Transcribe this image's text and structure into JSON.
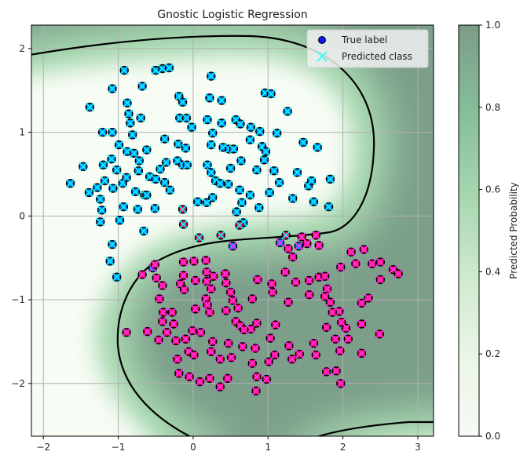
{
  "chart_data": {
    "type": "scatter",
    "title": "Gnostic Logistic Regression",
    "xlabel": "",
    "ylabel": "",
    "xlim": [
      -2.16,
      3.21
    ],
    "ylim": [
      -2.63,
      2.28
    ],
    "xticks": [
      -2,
      -1,
      0,
      1,
      2,
      3
    ],
    "yticks": [
      2,
      1,
      0,
      -1,
      -2
    ],
    "grid": true,
    "legend": {
      "placement": "top-right",
      "entries": [
        {
          "label": "True label",
          "marker": "circle",
          "color": "#1010ff"
        },
        {
          "label": "Predicted class",
          "marker": "x",
          "color": "#40ffff"
        }
      ]
    },
    "background": "predicted probability field, decision boundary at p = 0.5 drawn as black contour",
    "colorbar": {
      "label": "Predicted Probability",
      "range": [
        0.0,
        1.0
      ],
      "ticks": [
        "0.0",
        "0.2",
        "0.4",
        "0.6",
        "0.8",
        "1.0"
      ],
      "colors": [
        "#f6faf4",
        "#eaf5e7",
        "#cde9cb",
        "#a3d5ad",
        "#84bc98",
        "#7c9c88"
      ]
    },
    "colors": {
      "true_0": "#0a7cff",
      "true_1": "#ff0a5a",
      "pred_0": "#00ffff",
      "pred_1": "#ff33ff"
    },
    "series": [
      {
        "true_label": 0,
        "predicted": 0,
        "points": [
          [
            -1.64,
            0.39
          ],
          [
            -1.47,
            0.59
          ],
          [
            -1.39,
            0.28
          ],
          [
            -1.38,
            1.3
          ],
          [
            -1.08,
            1.52
          ],
          [
            -0.92,
            1.74
          ],
          [
            -0.88,
            1.35
          ],
          [
            -0.68,
            1.55
          ],
          [
            -0.5,
            1.74
          ],
          [
            -0.41,
            1.76
          ],
          [
            -0.32,
            1.77
          ],
          [
            -0.19,
            1.43
          ],
          [
            -0.14,
            1.36
          ],
          [
            -0.18,
            1.17
          ],
          [
            -0.09,
            1.17
          ],
          [
            -0.02,
            1.06
          ],
          [
            -0.2,
            0.86
          ],
          [
            -0.38,
            0.92
          ],
          [
            -0.1,
            0.81
          ],
          [
            -0.86,
            1.22
          ],
          [
            -0.7,
            1.17
          ],
          [
            -0.81,
            0.97
          ],
          [
            -1.08,
            1.0
          ],
          [
            -1.21,
            1.0
          ],
          [
            -1.09,
            0.68
          ],
          [
            -1.02,
            0.55
          ],
          [
            -1.2,
            0.61
          ],
          [
            -1.18,
            0.42
          ],
          [
            -1.28,
            0.34
          ],
          [
            -1.24,
            0.2
          ],
          [
            -1.22,
            0.07
          ],
          [
            -0.99,
            0.85
          ],
          [
            -0.88,
            0.77
          ],
          [
            -0.79,
            0.75
          ],
          [
            -0.72,
            0.66
          ],
          [
            -0.73,
            0.54
          ],
          [
            -0.58,
            0.47
          ],
          [
            -0.44,
            0.56
          ],
          [
            -0.36,
            0.64
          ],
          [
            -0.21,
            0.66
          ],
          [
            -0.14,
            0.61
          ],
          [
            -0.08,
            0.61
          ],
          [
            0.24,
            1.67
          ],
          [
            0.22,
            1.41
          ],
          [
            0.19,
            1.15
          ],
          [
            0.38,
            1.38
          ],
          [
            0.38,
            1.11
          ],
          [
            0.4,
            0.82
          ],
          [
            0.24,
            0.85
          ],
          [
            0.26,
            0.99
          ],
          [
            0.57,
            1.15
          ],
          [
            0.63,
            1.1
          ],
          [
            0.48,
            0.8
          ],
          [
            0.54,
            0.8
          ],
          [
            0.89,
            1.01
          ],
          [
            0.77,
            1.06
          ],
          [
            0.92,
            0.83
          ],
          [
            0.97,
            0.77
          ],
          [
            0.96,
            1.47
          ],
          [
            1.04,
            1.46
          ],
          [
            1.26,
            1.25
          ],
          [
            1.12,
            0.99
          ],
          [
            1.08,
            0.54
          ],
          [
            1.47,
            0.88
          ],
          [
            1.39,
            0.52
          ],
          [
            1.54,
            0.36
          ],
          [
            1.61,
            0.17
          ],
          [
            1.81,
            0.11
          ],
          [
            1.83,
            0.44
          ],
          [
            1.66,
            0.82
          ],
          [
            1.58,
            0.42
          ],
          [
            1.33,
            0.21
          ],
          [
            1.15,
            0.4
          ],
          [
            0.95,
            0.67
          ],
          [
            0.76,
            0.91
          ],
          [
            0.85,
            0.55
          ],
          [
            0.64,
            0.66
          ],
          [
            0.5,
            0.57
          ],
          [
            0.47,
            0.38
          ],
          [
            0.3,
            0.42
          ],
          [
            0.19,
            0.61
          ],
          [
            0.24,
            0.52
          ],
          [
            0.36,
            0.39
          ],
          [
            0.62,
            0.31
          ],
          [
            0.65,
            0.16
          ],
          [
            0.58,
            0.05
          ],
          [
            0.88,
            0.1
          ],
          [
            0.76,
            0.25
          ],
          [
            1.02,
            0.28
          ],
          [
            0.67,
            -0.08
          ],
          [
            0.18,
            0.16
          ],
          [
            0.06,
            0.17
          ],
          [
            -0.84,
            1.11
          ],
          [
            -0.62,
            0.79
          ],
          [
            -0.5,
            0.44
          ],
          [
            -0.38,
            0.4
          ],
          [
            -0.31,
            0.31
          ],
          [
            -0.94,
            0.39
          ],
          [
            -0.74,
            0.08
          ],
          [
            -0.51,
            0.09
          ],
          [
            0.26,
            0.22
          ],
          [
            -0.65,
            0.25
          ],
          [
            -1.07,
            0.33
          ],
          [
            -0.93,
            0.11
          ],
          [
            -0.66,
            -0.18
          ],
          [
            -1.11,
            -0.54
          ],
          [
            -1.08,
            -0.34
          ],
          [
            -1.02,
            -0.73
          ],
          [
            -1.24,
            -0.07
          ],
          [
            -0.98,
            -0.05
          ],
          [
            -0.77,
            0.29
          ],
          [
            -0.89,
            0.46
          ],
          [
            -0.62,
            0.25
          ]
        ]
      },
      {
        "true_label": 0,
        "predicted": 1,
        "points": [
          [
            0.53,
            -0.36
          ],
          [
            1.16,
            -0.32
          ],
          [
            1.41,
            -0.36
          ],
          [
            -0.54,
            -0.62
          ]
        ]
      },
      {
        "true_label": 1,
        "predicted": 0,
        "points": [
          [
            -0.14,
            0.08
          ],
          [
            -0.13,
            -0.1
          ],
          [
            0.08,
            -0.26
          ],
          [
            0.37,
            -0.23
          ],
          [
            0.62,
            -0.11
          ],
          [
            1.24,
            -0.23
          ]
        ]
      },
      {
        "true_label": 1,
        "predicted": 1,
        "points": [
          [
            -0.89,
            -1.39
          ],
          [
            -0.68,
            -0.7
          ],
          [
            -0.49,
            -0.74
          ],
          [
            -0.45,
            -0.99
          ],
          [
            -0.41,
            -1.26
          ],
          [
            -0.23,
            -1.49
          ],
          [
            -0.06,
            -1.62
          ],
          [
            -0.21,
            -1.71
          ],
          [
            0.01,
            -1.66
          ],
          [
            0.09,
            -1.98
          ],
          [
            -0.05,
            -1.92
          ],
          [
            -0.01,
            -1.37
          ],
          [
            0.1,
            -1.39
          ],
          [
            0.03,
            -1.11
          ],
          [
            -0.17,
            -0.81
          ],
          [
            -0.12,
            -0.88
          ],
          [
            -0.13,
            -0.71
          ],
          [
            0.01,
            -0.54
          ],
          [
            0.03,
            -0.77
          ],
          [
            0.17,
            -0.53
          ],
          [
            0.18,
            -0.67
          ],
          [
            0.18,
            -0.78
          ],
          [
            0.17,
            -0.99
          ],
          [
            0.19,
            -1.06
          ],
          [
            0.22,
            -1.15
          ],
          [
            0.24,
            -0.87
          ],
          [
            0.27,
            -0.72
          ],
          [
            0.43,
            -0.69
          ],
          [
            0.44,
            -0.8
          ],
          [
            0.5,
            -0.91
          ],
          [
            0.53,
            -1.01
          ],
          [
            0.44,
            -1.13
          ],
          [
            0.6,
            -1.1
          ],
          [
            0.57,
            -1.26
          ],
          [
            0.63,
            -1.31
          ],
          [
            0.79,
            -0.99
          ],
          [
            0.86,
            -0.76
          ],
          [
            1.06,
            -0.91
          ],
          [
            1.05,
            -0.81
          ],
          [
            1.23,
            -0.67
          ],
          [
            1.27,
            -0.39
          ],
          [
            1.33,
            -0.49
          ],
          [
            1.52,
            -0.33
          ],
          [
            1.45,
            -0.25
          ],
          [
            1.68,
            -0.35
          ],
          [
            1.64,
            -0.23
          ],
          [
            1.68,
            -0.73
          ],
          [
            1.83,
            -1.03
          ],
          [
            1.79,
            -0.87
          ],
          [
            1.76,
            -0.72
          ],
          [
            1.97,
            -0.61
          ],
          [
            2.11,
            -0.43
          ],
          [
            2.28,
            -0.4
          ],
          [
            2.17,
            -0.57
          ],
          [
            2.39,
            -0.57
          ],
          [
            2.5,
            -0.55
          ],
          [
            2.5,
            -0.76
          ],
          [
            2.67,
            -0.64
          ],
          [
            2.74,
            -0.69
          ],
          [
            2.34,
            -0.98
          ],
          [
            2.25,
            -1.29
          ],
          [
            2.07,
            -1.47
          ],
          [
            2.04,
            -1.34
          ],
          [
            1.98,
            -1.27
          ],
          [
            1.95,
            -1.14
          ],
          [
            1.86,
            -1.15
          ],
          [
            1.76,
            -0.96
          ],
          [
            1.55,
            -0.94
          ],
          [
            1.55,
            -0.77
          ],
          [
            1.37,
            -0.79
          ],
          [
            1.27,
            -1.03
          ],
          [
            1.1,
            -1.3
          ],
          [
            0.85,
            -1.28
          ],
          [
            0.77,
            -1.35
          ],
          [
            0.68,
            -1.36
          ],
          [
            0.47,
            -1.52
          ],
          [
            0.26,
            -1.5
          ],
          [
            0.24,
            -1.62
          ],
          [
            0.36,
            -1.71
          ],
          [
            0.51,
            -1.69
          ],
          [
            0.66,
            -1.56
          ],
          [
            0.83,
            -1.58
          ],
          [
            1.01,
            -1.74
          ],
          [
            1.03,
            -1.46
          ],
          [
            1.28,
            -1.55
          ],
          [
            1.32,
            -1.71
          ],
          [
            1.42,
            -1.65
          ],
          [
            1.61,
            -1.52
          ],
          [
            1.64,
            -1.66
          ],
          [
            1.78,
            -1.33
          ],
          [
            1.9,
            -1.47
          ],
          [
            1.96,
            -1.61
          ],
          [
            2.25,
            -1.64
          ],
          [
            2.49,
            -1.41
          ],
          [
            2.25,
            -1.04
          ],
          [
            1.91,
            -1.85
          ],
          [
            1.78,
            -1.86
          ],
          [
            1.97,
            -2.0
          ],
          [
            0.84,
            -2.09
          ],
          [
            0.85,
            -1.92
          ],
          [
            0.98,
            -1.95
          ],
          [
            1.09,
            -1.66
          ],
          [
            0.79,
            -1.76
          ],
          [
            0.36,
            -2.04
          ],
          [
            0.22,
            -1.94
          ],
          [
            0.46,
            -1.94
          ],
          [
            -0.19,
            -1.88
          ],
          [
            -0.1,
            -1.47
          ],
          [
            -0.35,
            -1.39
          ],
          [
            -0.46,
            -1.48
          ],
          [
            -0.61,
            -1.38
          ],
          [
            -0.26,
            -1.29
          ],
          [
            -0.28,
            -1.15
          ],
          [
            -0.4,
            -1.15
          ],
          [
            -0.41,
            -0.83
          ],
          [
            -0.51,
            -0.58
          ],
          [
            -0.13,
            -0.55
          ]
        ]
      }
    ]
  }
}
